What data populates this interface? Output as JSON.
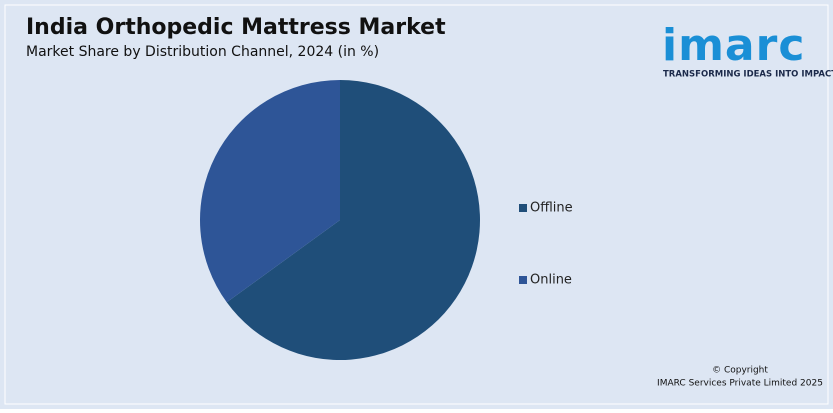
{
  "chart_data": {
    "type": "pie",
    "title": "India Orthopedic Mattress Market",
    "subtitle": "Market Share by Distribution Channel, 2024 (in %)",
    "categories": [
      "Offline",
      "Online"
    ],
    "values": [
      65,
      35
    ],
    "colors": [
      "#1f4e79",
      "#2e5597"
    ],
    "legend": "right"
  },
  "logo": {
    "name": "imarc",
    "tagline": "TRANSFORMING IDEAS INTO IMPACT"
  },
  "footer": {
    "line1": "© Copyright",
    "line2": "IMARC Services Private Limited 2025"
  }
}
